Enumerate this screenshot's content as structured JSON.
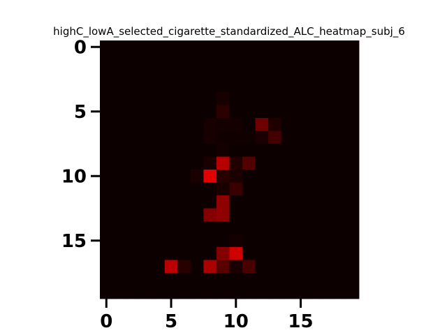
{
  "chart_data": {
    "type": "heatmap",
    "title": "highC_lowA_selected_cigarette_standardized_ALC_heatmap_subj_6",
    "xlabel": "",
    "ylabel": "",
    "colormap": "black-to-red",
    "colors": {
      "low": "#0d0000",
      "high": "#e60000"
    },
    "shape": [
      20,
      20
    ],
    "xlim": [
      -0.5,
      19.5
    ],
    "ylim": [
      19.5,
      -0.5
    ],
    "x_ticks": [
      0,
      5,
      10,
      15
    ],
    "x_tick_labels": [
      "0",
      "5",
      "10",
      "15"
    ],
    "y_ticks": [
      0,
      5,
      10,
      15
    ],
    "y_tick_labels": [
      "0",
      "5",
      "10",
      "15"
    ],
    "grid": false,
    "legend": "none",
    "values": [
      [
        0,
        0,
        0,
        0,
        0,
        0,
        0,
        0,
        0,
        0,
        0,
        0,
        0,
        0,
        0,
        0,
        0,
        0,
        0,
        0
      ],
      [
        0,
        0,
        0,
        0,
        0,
        0,
        0,
        0,
        0,
        0,
        0,
        0,
        0,
        0,
        0,
        0,
        0,
        0,
        0,
        0
      ],
      [
        0,
        0,
        0,
        0,
        0,
        0,
        0,
        0,
        0,
        0,
        0,
        0,
        0,
        0,
        0,
        0,
        0,
        0,
        0,
        0
      ],
      [
        0,
        0,
        0,
        0,
        0,
        0,
        0,
        0,
        0,
        0,
        0,
        0,
        0,
        0,
        0,
        0,
        0,
        0,
        0,
        0
      ],
      [
        0,
        0,
        0,
        0,
        0,
        0,
        0,
        0,
        0,
        0.04,
        0,
        0,
        0,
        0,
        0,
        0,
        0,
        0,
        0,
        0
      ],
      [
        0,
        0,
        0,
        0,
        0,
        0,
        0,
        0,
        0,
        0.14,
        0,
        0,
        0,
        0,
        0,
        0,
        0,
        0,
        0,
        0
      ],
      [
        0,
        0,
        0,
        0,
        0,
        0,
        0,
        0,
        0.04,
        0.03,
        0.03,
        0,
        0.45,
        0.08,
        0,
        0,
        0,
        0,
        0,
        0
      ],
      [
        0,
        0,
        0,
        0,
        0,
        0,
        0,
        0,
        0.05,
        0.02,
        0.02,
        0.02,
        0.06,
        0.25,
        0,
        0,
        0,
        0,
        0,
        0
      ],
      [
        0,
        0,
        0,
        0,
        0,
        0,
        0,
        0,
        0,
        0.03,
        0,
        0,
        0,
        0,
        0,
        0,
        0,
        0,
        0,
        0
      ],
      [
        0,
        0,
        0,
        0,
        0,
        0,
        0,
        0,
        0.06,
        0.78,
        0.1,
        0.32,
        0,
        0,
        0,
        0,
        0,
        0,
        0,
        0
      ],
      [
        0,
        0,
        0,
        0,
        0,
        0,
        0,
        0.06,
        0.98,
        0.12,
        0.06,
        0,
        0,
        0,
        0,
        0,
        0,
        0,
        0,
        0
      ],
      [
        0,
        0,
        0,
        0,
        0,
        0,
        0,
        0,
        0,
        0.06,
        0.2,
        0,
        0,
        0,
        0,
        0,
        0,
        0,
        0,
        0
      ],
      [
        0,
        0,
        0,
        0,
        0,
        0,
        0,
        0,
        0,
        0.6,
        0,
        0,
        0,
        0,
        0,
        0,
        0,
        0,
        0,
        0
      ],
      [
        0,
        0,
        0,
        0,
        0,
        0,
        0,
        0,
        0.55,
        0.6,
        0,
        0,
        0,
        0,
        0,
        0,
        0,
        0,
        0,
        0
      ],
      [
        0,
        0,
        0,
        0,
        0,
        0,
        0,
        0,
        0,
        0,
        0,
        0,
        0,
        0,
        0,
        0,
        0,
        0,
        0,
        0
      ],
      [
        0,
        0,
        0,
        0,
        0,
        0,
        0,
        0,
        0,
        0,
        0.03,
        0,
        0,
        0,
        0,
        0,
        0,
        0,
        0,
        0
      ],
      [
        0,
        0,
        0,
        0,
        0,
        0,
        0,
        0,
        0,
        0.55,
        0.9,
        0,
        0,
        0,
        0,
        0,
        0,
        0,
        0,
        0
      ],
      [
        0,
        0,
        0,
        0,
        0,
        0.8,
        0.12,
        0,
        0.72,
        0.35,
        0.06,
        0.28,
        0,
        0,
        0,
        0,
        0,
        0,
        0,
        0
      ],
      [
        0,
        0,
        0,
        0,
        0,
        0,
        0,
        0,
        0,
        0,
        0,
        0,
        0,
        0,
        0,
        0,
        0,
        0,
        0,
        0
      ],
      [
        0,
        0,
        0,
        0,
        0,
        0,
        0,
        0,
        0,
        0,
        0,
        0,
        0,
        0,
        0,
        0,
        0,
        0,
        0,
        0
      ]
    ]
  }
}
